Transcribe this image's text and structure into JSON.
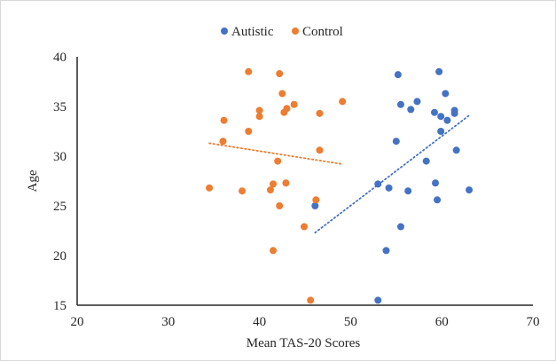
{
  "chart_data": {
    "type": "scatter",
    "xlabel": "Mean TAS-20 Scores",
    "ylabel": "Age",
    "xlim": [
      20,
      70
    ],
    "ylim": [
      15,
      40
    ],
    "x_ticks": [
      20,
      30,
      40,
      50,
      60,
      70
    ],
    "y_ticks": [
      15,
      20,
      25,
      30,
      35,
      40
    ],
    "grid": false,
    "legend": "top-center",
    "series": [
      {
        "name": "Autistic",
        "color": "#4472C4",
        "points": [
          [
            55.2,
            38.2
          ],
          [
            59.7,
            38.5
          ],
          [
            60.4,
            36.3
          ],
          [
            55.5,
            35.2
          ],
          [
            57.3,
            35.5
          ],
          [
            56.6,
            34.7
          ],
          [
            59.2,
            34.4
          ],
          [
            61.4,
            34.6
          ],
          [
            61.4,
            34.3
          ],
          [
            59.9,
            34.0
          ],
          [
            60.6,
            33.6
          ],
          [
            59.9,
            32.5
          ],
          [
            55.0,
            31.5
          ],
          [
            61.6,
            30.6
          ],
          [
            58.3,
            29.5
          ],
          [
            53.0,
            27.2
          ],
          [
            54.2,
            26.8
          ],
          [
            56.3,
            26.5
          ],
          [
            59.3,
            27.3
          ],
          [
            63.0,
            26.6
          ],
          [
            59.5,
            25.6
          ],
          [
            46.1,
            25.0
          ],
          [
            55.5,
            22.9
          ],
          [
            53.9,
            20.5
          ],
          [
            53.0,
            15.5
          ]
        ],
        "trendline": {
          "style": "dotted",
          "x": [
            46.1,
            63.0
          ],
          "y": [
            22.3,
            34.1
          ]
        }
      },
      {
        "name": "Control",
        "color": "#ED7D31",
        "points": [
          [
            38.8,
            38.5
          ],
          [
            42.2,
            38.3
          ],
          [
            42.5,
            36.3
          ],
          [
            43.8,
            35.2
          ],
          [
            49.1,
            35.5
          ],
          [
            43.0,
            34.8
          ],
          [
            40.0,
            34.6
          ],
          [
            42.7,
            34.4
          ],
          [
            46.6,
            34.3
          ],
          [
            40.0,
            34.0
          ],
          [
            36.1,
            33.6
          ],
          [
            38.8,
            32.5
          ],
          [
            36.0,
            31.5
          ],
          [
            46.6,
            30.6
          ],
          [
            42.0,
            29.5
          ],
          [
            34.5,
            26.8
          ],
          [
            38.1,
            26.5
          ],
          [
            41.2,
            26.6
          ],
          [
            41.5,
            27.2
          ],
          [
            42.9,
            27.3
          ],
          [
            46.2,
            25.6
          ],
          [
            42.2,
            25.0
          ],
          [
            44.9,
            22.9
          ],
          [
            41.5,
            20.5
          ],
          [
            45.6,
            15.5
          ]
        ],
        "trendline": {
          "style": "dotted",
          "x": [
            34.5,
            49.1
          ],
          "y": [
            31.3,
            29.2
          ]
        }
      }
    ]
  }
}
